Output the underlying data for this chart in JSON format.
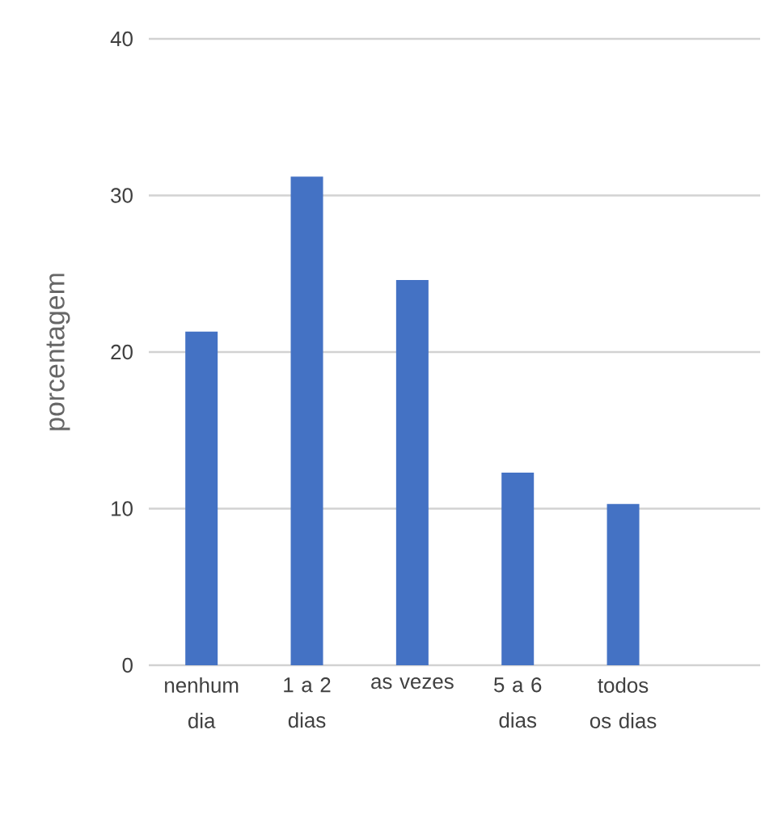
{
  "chart_data": {
    "type": "bar",
    "ylabel": "porcentagem",
    "categories": [
      "nenhum dia",
      "1 a 2 dias",
      "as vezes",
      "5 a 6 dias",
      "todos os dias"
    ],
    "values": [
      21.3,
      31.2,
      24.6,
      12.3,
      10.3
    ],
    "color": "#4472c4",
    "ylim": [
      0,
      40
    ],
    "yticks": [
      0,
      10,
      20,
      30,
      40
    ],
    "grid": "y"
  }
}
